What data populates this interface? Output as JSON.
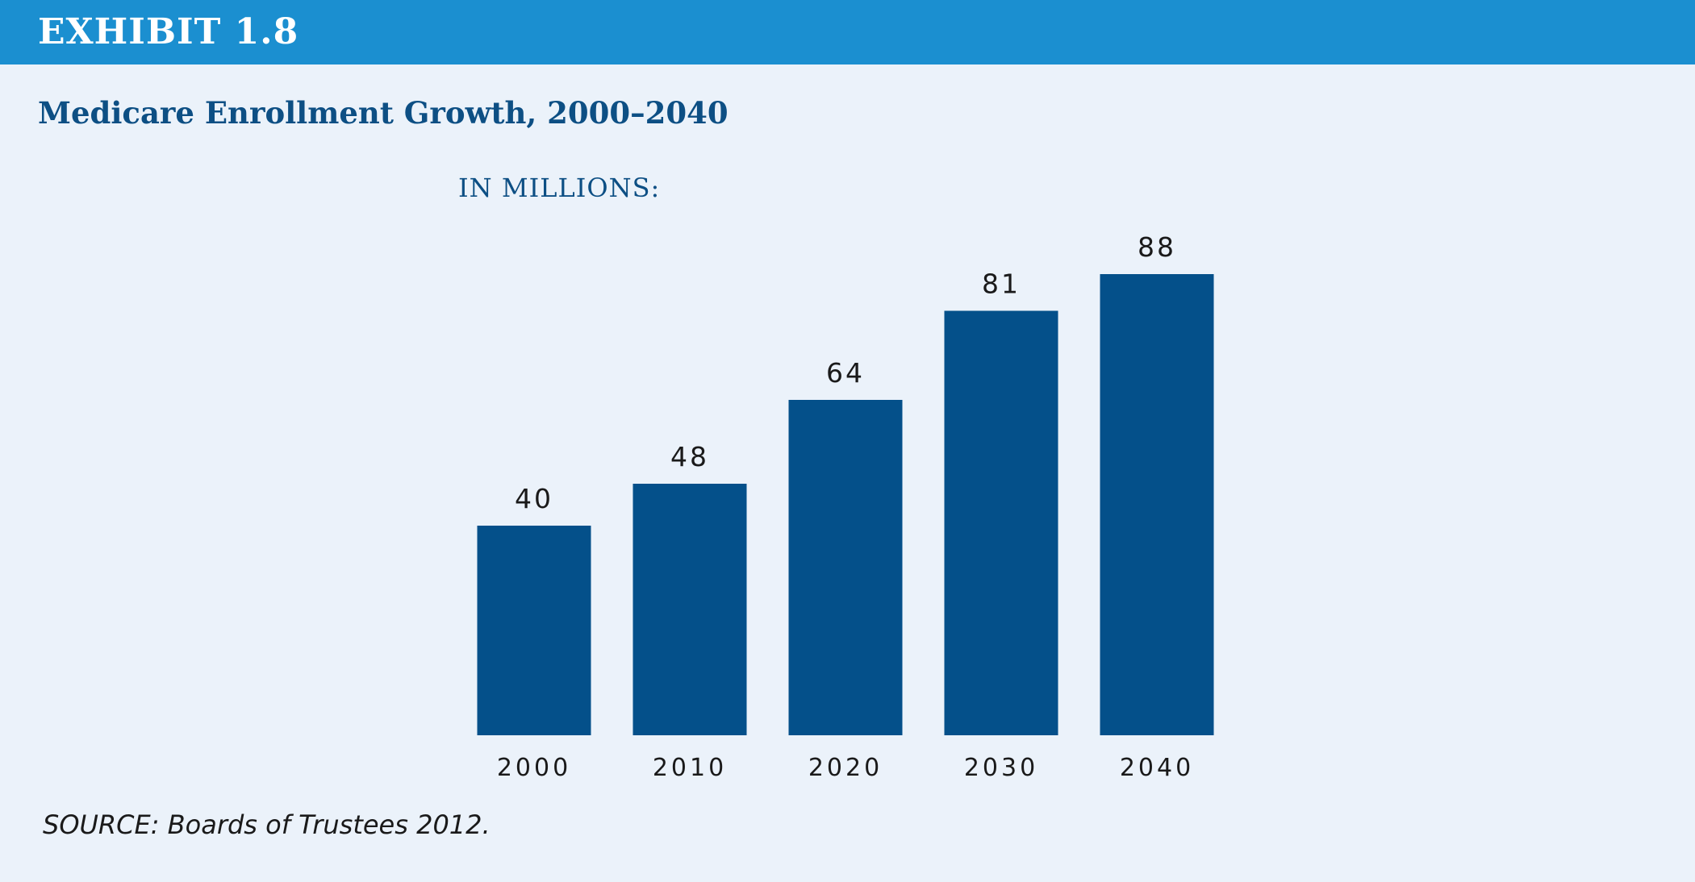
{
  "header": {
    "exhibit": "EXHIBIT 1.8"
  },
  "title": "Medicare Enrollment Growth, 2000–2040",
  "units": "IN MILLIONS:",
  "source": "SOURCE:  Boards of Trustees 2012.",
  "colors": {
    "header_bar": "#1b8fd0",
    "background": "#ebf2fa",
    "bar": "#04508a",
    "title_text": "#0d4f84"
  },
  "chart_data": {
    "type": "bar",
    "title": "Medicare Enrollment Growth, 2000–2040",
    "subtitle": "IN MILLIONS:",
    "xlabel": "",
    "ylabel": "",
    "categories": [
      "2000",
      "2010",
      "2020",
      "2030",
      "2040"
    ],
    "values": [
      40,
      48,
      64,
      81,
      88
    ],
    "data_labels": [
      "40",
      "48",
      "64",
      "81",
      "88"
    ],
    "ylim": [
      0,
      88
    ],
    "grid": false,
    "legend": "none"
  }
}
